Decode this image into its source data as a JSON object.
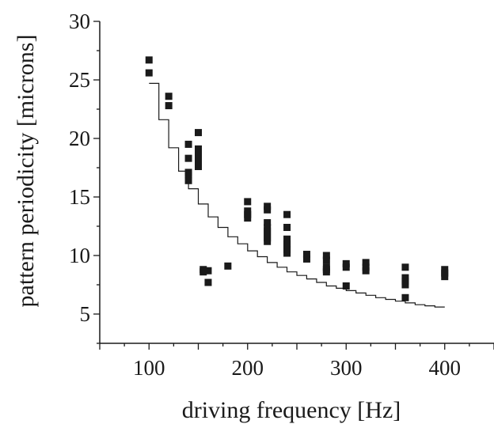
{
  "chart_data": {
    "type": "scatter",
    "title": "",
    "xlabel": "driving frequency [Hz]",
    "ylabel": "pattern periodicity [microns]",
    "xlim": [
      50,
      450
    ],
    "ylim": [
      2.5,
      30
    ],
    "x_ticks": [
      100,
      200,
      300,
      400
    ],
    "y_ticks": [
      5,
      10,
      15,
      20,
      25,
      30
    ],
    "grid": false,
    "legend": "none",
    "colors": {
      "marker": "#1a1a1a",
      "line": "#1a1a1a",
      "axis": "#1a1a1a"
    },
    "series": [
      {
        "type": "scatter",
        "marker": "square",
        "x": [
          100,
          100,
          120,
          120,
          140,
          140,
          140,
          140,
          140,
          150,
          150,
          150,
          150,
          150,
          150,
          150,
          155,
          155,
          160,
          160,
          180,
          200,
          200,
          200,
          200,
          220,
          220,
          220,
          220,
          220,
          220,
          220,
          220,
          240,
          240,
          240,
          240,
          240,
          240,
          240,
          260,
          260,
          280,
          280,
          280,
          280,
          280,
          300,
          300,
          300,
          320,
          320,
          320,
          360,
          360,
          360,
          360,
          360,
          400,
          400,
          400
        ],
        "y": [
          26.7,
          25.6,
          23.6,
          22.8,
          19.5,
          18.3,
          17.1,
          16.9,
          16.4,
          20.5,
          19.1,
          18.8,
          18.5,
          18.2,
          17.9,
          17.6,
          8.8,
          8.6,
          8.7,
          7.7,
          9.1,
          14.6,
          13.8,
          13.5,
          13.2,
          14.2,
          13.9,
          12.8,
          12.4,
          12.1,
          11.8,
          11.5,
          11.2,
          13.5,
          12.4,
          11.4,
          11.0,
          10.8,
          10.5,
          10.2,
          10.1,
          9.7,
          10.0,
          9.6,
          9.0,
          8.8,
          8.6,
          9.3,
          9.0,
          7.4,
          9.4,
          9.0,
          8.7,
          9.0,
          8.1,
          7.8,
          7.5,
          6.4,
          8.8,
          8.5,
          8.2
        ]
      },
      {
        "type": "line",
        "step": true,
        "x": [
          100,
          110,
          110,
          120,
          120,
          130,
          130,
          140,
          140,
          150,
          150,
          160,
          160,
          170,
          170,
          180,
          180,
          190,
          190,
          200,
          200,
          210,
          210,
          220,
          220,
          230,
          230,
          240,
          240,
          250,
          250,
          260,
          260,
          270,
          270,
          280,
          280,
          290,
          290,
          300,
          300,
          310,
          310,
          320,
          320,
          330,
          330,
          340,
          340,
          350,
          350,
          360,
          360,
          370,
          370,
          380,
          380,
          390,
          390,
          400
        ],
        "y": [
          24.7,
          24.7,
          21.6,
          21.6,
          19.2,
          19.2,
          17.2,
          17.2,
          15.7,
          15.7,
          14.4,
          14.4,
          13.3,
          13.3,
          12.4,
          12.4,
          11.6,
          11.6,
          11.0,
          11.0,
          10.4,
          10.4,
          9.9,
          9.9,
          9.4,
          9.4,
          9.0,
          9.0,
          8.6,
          8.6,
          8.3,
          8.3,
          8.0,
          8.0,
          7.7,
          7.7,
          7.4,
          7.4,
          7.2,
          7.2,
          7.0,
          7.0,
          6.8,
          6.8,
          6.6,
          6.6,
          6.4,
          6.4,
          6.25,
          6.25,
          6.1,
          6.1,
          5.95,
          5.95,
          5.8,
          5.8,
          5.7,
          5.7,
          5.6,
          5.6
        ]
      }
    ]
  }
}
